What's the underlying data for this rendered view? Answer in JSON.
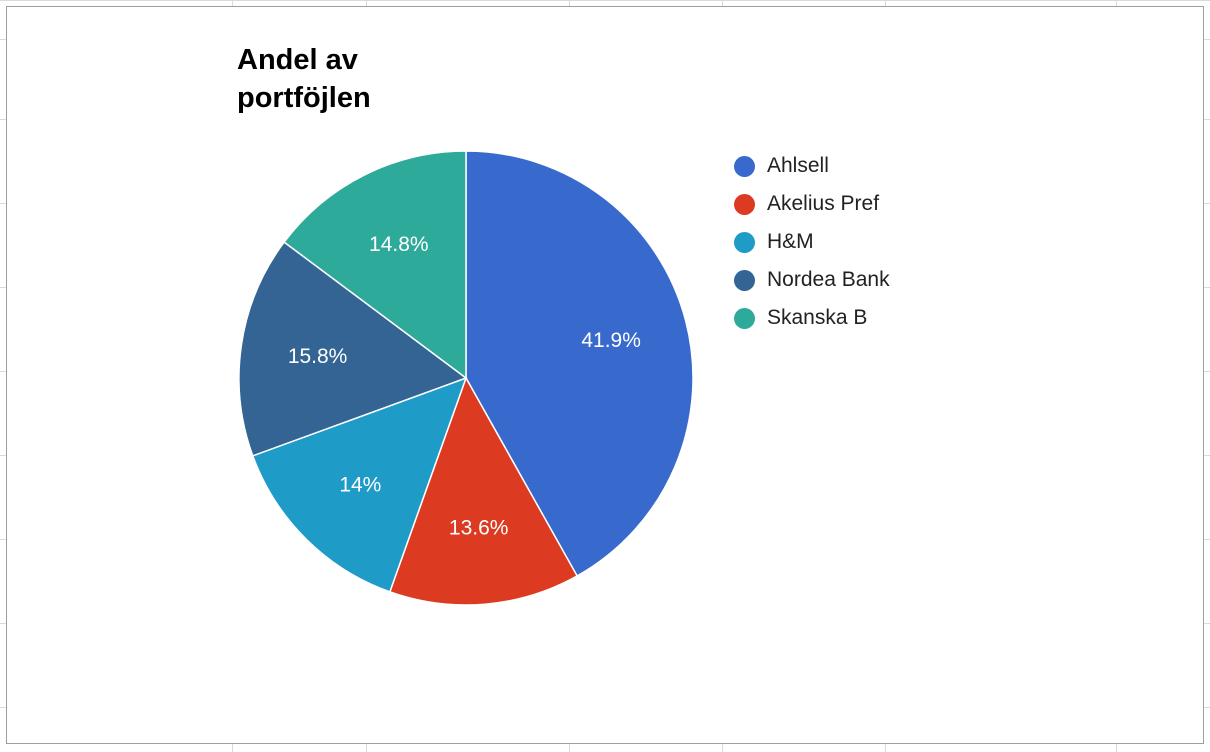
{
  "chart_data": {
    "type": "pie",
    "title": "Andel av portföjlen",
    "categories": [
      "Ahlsell",
      "Akelius Pref",
      "H&M",
      "Nordea Bank",
      "Skanska B"
    ],
    "values": [
      41.9,
      13.6,
      14,
      15.8,
      14.8
    ],
    "labels": [
      "41.9%",
      "13.6%",
      "14%",
      "15.8%",
      "14.8%"
    ],
    "colors": [
      "#3869cc",
      "#dc3b22",
      "#1e9bc7",
      "#336493",
      "#2eaa9a"
    ],
    "legend_position": "right"
  }
}
